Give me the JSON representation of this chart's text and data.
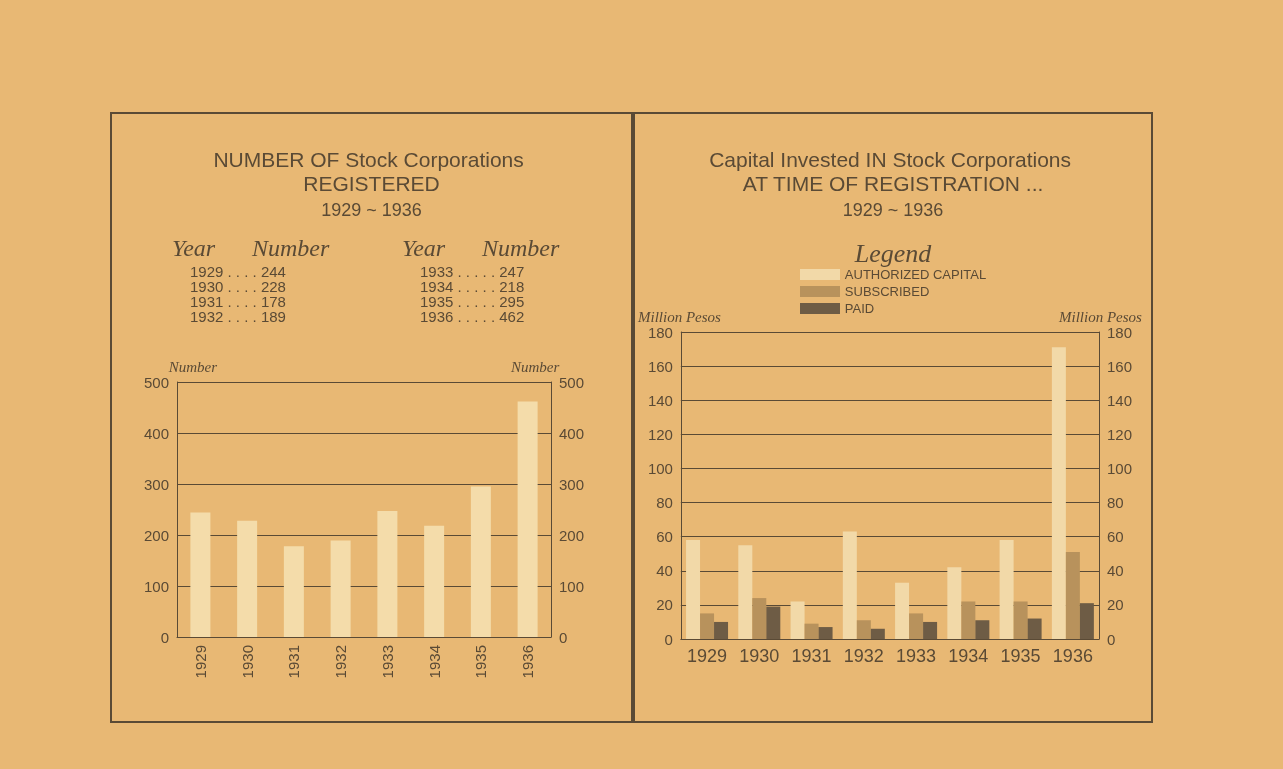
{
  "chart_data": [
    {
      "type": "bar",
      "title": "NUMBER OF Stock Corporations REGISTERED",
      "subtitle": "1929 ~ 1936",
      "ylabel": "Number",
      "y2label": "Number",
      "annotations": [
        "Year",
        "Number",
        "Year",
        "Number",
        "1929 . . . . 244",
        "1930 . . . . 228",
        "1931 . . . . 178",
        "1932 . . . . 189",
        "1933 . . . . . 247",
        "1934 . . . . . 218",
        "1935 . . . . . 295",
        "1936 . . . . . 462"
      ],
      "categories": [
        "1929",
        "1930",
        "1931",
        "1932",
        "1933",
        "1934",
        "1935",
        "1936"
      ],
      "values": [
        244,
        228,
        178,
        189,
        247,
        218,
        295,
        462
      ],
      "color": "#f4dcaa",
      "ylim": [
        0,
        500
      ],
      "yticks": [
        0,
        100,
        200,
        300,
        400,
        500
      ],
      "y2lim": [
        0,
        500
      ],
      "y2ticks": [
        0,
        100,
        200,
        300,
        400,
        500
      ],
      "grid": "y",
      "legend": false
    },
    {
      "type": "bar",
      "title": "Capital Invested IN Stock Corporations AT TIME OF REGISTRATION ...",
      "subtitle": "1929 ~ 1936",
      "ylabel": "Million Pesos",
      "y2label": "Million Pesos",
      "legend_title": "Legend",
      "categories": [
        "1929",
        "1930",
        "1931",
        "1932",
        "1933",
        "1934",
        "1935",
        "1936"
      ],
      "series": [
        {
          "name": "AUTHORIZED CAPITAL",
          "color": "#f2d9a8",
          "values": [
            58,
            55,
            22,
            63,
            33,
            42,
            58,
            171
          ]
        },
        {
          "name": "SUBSCRIBED",
          "color": "#b8925c",
          "values": [
            15,
            24,
            9,
            11,
            15,
            22,
            22,
            51
          ]
        },
        {
          "name": "PAID",
          "color": "#6e5c45",
          "values": [
            10,
            19,
            7,
            6,
            10,
            11,
            12,
            21
          ]
        }
      ],
      "ylim": [
        0,
        180
      ],
      "yticks": [
        0,
        20,
        40,
        60,
        80,
        100,
        120,
        140,
        160,
        180
      ],
      "y2lim": [
        0,
        180
      ],
      "y2ticks": [
        0,
        20,
        40,
        60,
        80,
        100,
        120,
        140,
        160,
        180
      ],
      "grid": "y",
      "legend": "top"
    }
  ]
}
